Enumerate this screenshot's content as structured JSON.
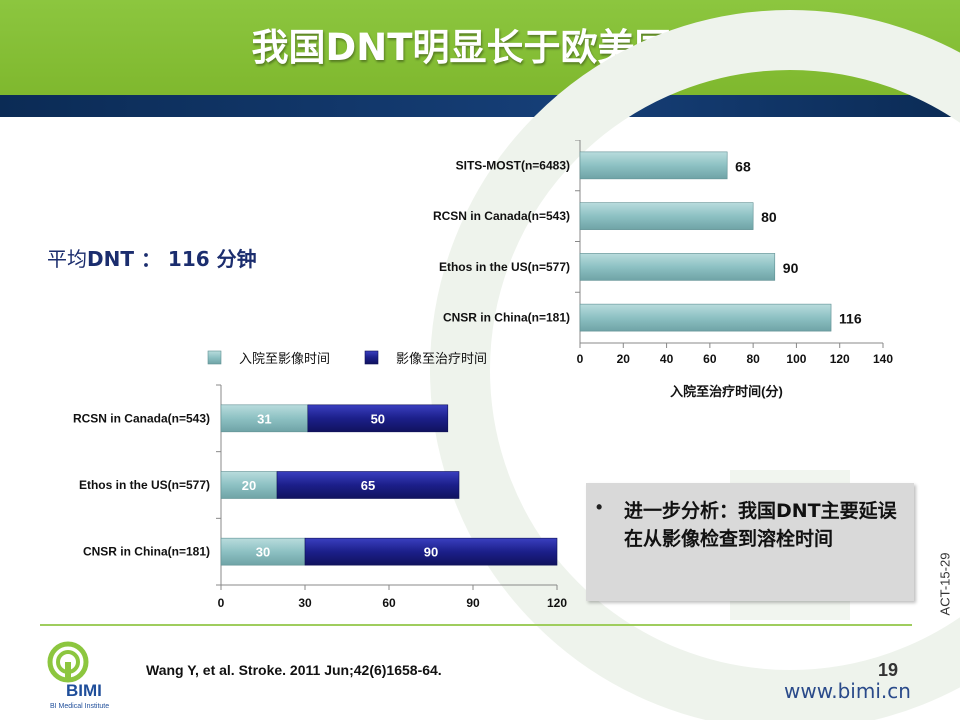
{
  "slide": {
    "title": "我国DNT明显长于欧美国家",
    "avg_label": "平均",
    "avg_term": "DNT",
    "avg_sep": " ：",
    "avg_value": " 116 分钟",
    "analysis_bullet": "•",
    "analysis_text": "进一步分析：我国DNT主要延误在从影像检查到溶栓时间",
    "side_code": "ACT-15-29",
    "citation": "Wang Y, et al. Stroke. 2011 Jun;42(6)1658-64.",
    "page_number": "19",
    "website": "www.bimi.cn",
    "logo": {
      "text": "BIMI",
      "sub": "BI Medical Institute"
    }
  },
  "colors": {
    "header_green": "#7fb82e",
    "header_navy": "#0b2b55",
    "bar_teal": "#8dc1c3",
    "bar_navy": "#1c1f8a",
    "footer_green": "#9fcd5e"
  },
  "chart_data": [
    {
      "type": "bar",
      "orientation": "horizontal",
      "categories": [
        "SITS-MOST(n=6483)",
        "RCSN in Canada(n=543)",
        "Ethos in the US(n=577)",
        "CNSR in China(n=181)"
      ],
      "values": [
        68,
        80,
        90,
        116
      ],
      "xlabel": "入院至治疗时间(分)",
      "xlim": [
        0,
        140
      ],
      "xticks": [
        0,
        20,
        40,
        60,
        80,
        100,
        120,
        140
      ],
      "data_labels": true,
      "grid": false
    },
    {
      "type": "bar",
      "orientation": "horizontal",
      "stacked": true,
      "categories": [
        "RCSN in Canada(n=543)",
        "Ethos in the US(n=577)",
        "CNSR in China(n=181)"
      ],
      "series": [
        {
          "name": "入院至影像时间",
          "values": [
            31,
            20,
            30
          ]
        },
        {
          "name": "影像至治疗时间",
          "values": [
            50,
            65,
            90
          ]
        }
      ],
      "xlim": [
        0,
        120
      ],
      "xticks": [
        0,
        30,
        60,
        90,
        120
      ],
      "legend": "top",
      "data_labels": true,
      "grid": false
    }
  ]
}
